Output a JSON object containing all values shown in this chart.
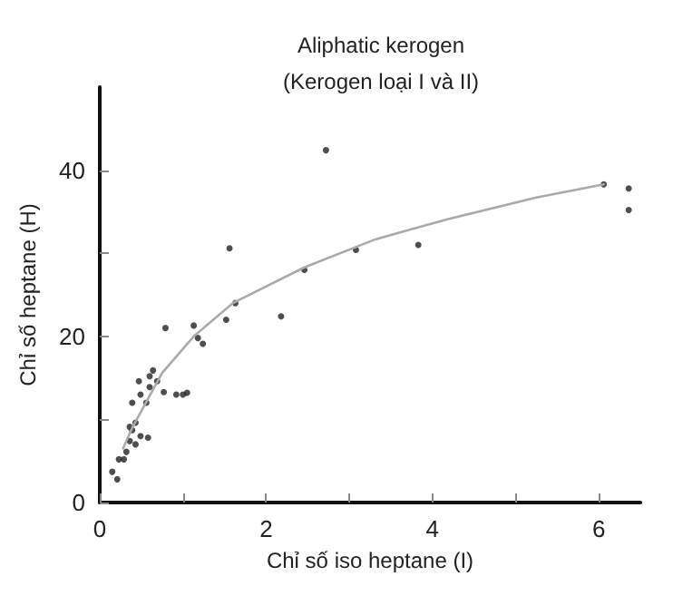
{
  "chart_data": {
    "type": "scatter",
    "title": "Aliphatic kerogen",
    "subtitle": "(Kerogen loại I và II)",
    "xlabel": "Chỉ số iso heptane (I)",
    "ylabel": "Chỉ số heptane (H)",
    "xlim": [
      0,
      6.5
    ],
    "ylim": [
      0,
      50
    ],
    "xticks": [
      0,
      {
        "value": 1,
        "label": null
      },
      2,
      {
        "value": 3,
        "label": null
      },
      4,
      {
        "value": 5,
        "label": null
      },
      6
    ],
    "yticks": [
      0,
      {
        "value": 10,
        "label": null
      },
      20,
      {
        "value": 30,
        "label": null
      },
      40
    ],
    "grid": false,
    "marker": "circle",
    "series": [
      {
        "color": "#222222",
        "x": [
          1.56,
          1.63,
          2.46,
          3.08,
          2.18,
          3.83,
          6.06,
          6.36,
          6.36,
          2.72,
          0.79,
          1.13,
          1.52,
          1.18,
          1.24,
          0.92,
          1.0,
          1.05,
          0.77,
          0.64,
          0.6,
          0.69,
          0.47,
          0.6,
          0.49,
          0.39,
          0.56,
          0.43,
          0.36,
          0.39,
          0.49,
          0.58,
          0.36,
          0.43,
          0.32,
          0.23,
          0.29,
          0.15,
          0.21
        ],
        "values": [
          30.6,
          24,
          28,
          30.4,
          22.4,
          31,
          38.3,
          37.8,
          35.2,
          42.4,
          21,
          21.3,
          22,
          19.8,
          19.1,
          13,
          13,
          13.2,
          13.3,
          15.9,
          15.2,
          14.6,
          14.6,
          13.9,
          13,
          12,
          12,
          9.6,
          9.1,
          8.7,
          8,
          7.8,
          7.4,
          7,
          6.1,
          5.2,
          5.2,
          3.7,
          2.8
        ]
      },
      {
        "type": "line",
        "color": "#aaaaaa",
        "marker": "none",
        "line_style": "solid",
        "x": [
          0.28,
          0.39,
          0.75,
          1.13,
          1.6,
          2.46,
          3.32,
          4.18,
          5.25,
          6.06
        ],
        "values": [
          6.5,
          9,
          15.6,
          20,
          24,
          28.3,
          31.7,
          34.1,
          36.7,
          38.3
        ]
      }
    ]
  }
}
